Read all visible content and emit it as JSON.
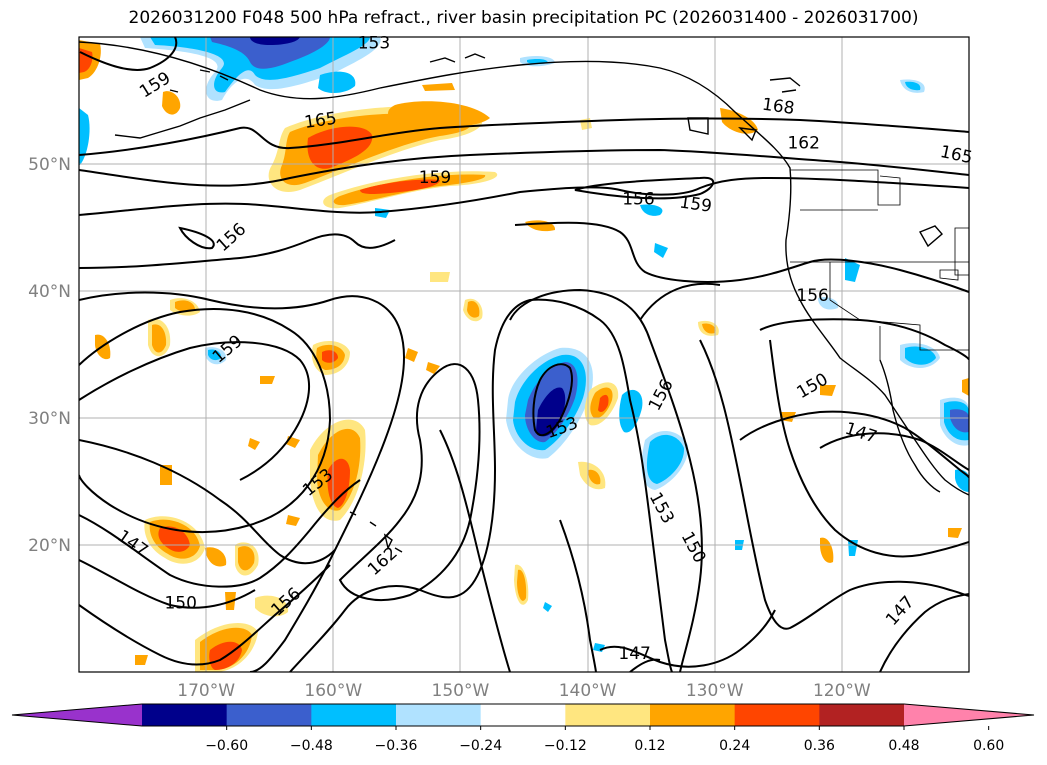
{
  "title": "2026031200 F048 500 hPa refract., river basin precipitation PC (2026031400 - 2026031700)",
  "map": {
    "lon_range": [
      -180,
      -110
    ],
    "lat_range": [
      10,
      60
    ],
    "lat_ticks": [
      {
        "value": 20,
        "label": "20°N"
      },
      {
        "value": 30,
        "label": "30°N"
      },
      {
        "value": 40,
        "label": "40°N"
      },
      {
        "value": 50,
        "label": "50°N"
      }
    ],
    "lon_ticks": [
      {
        "value": -170,
        "label": "170°W"
      },
      {
        "value": -160,
        "label": "160°W"
      },
      {
        "value": -150,
        "label": "150°W"
      },
      {
        "value": -140,
        "label": "140°W"
      },
      {
        "value": -130,
        "label": "130°W"
      },
      {
        "value": -120,
        "label": "120°W"
      }
    ],
    "contour_labels": [
      {
        "text": "159",
        "lon": -174,
        "lat": 56.2,
        "rot": -32
      },
      {
        "text": "165",
        "lon": -161,
        "lat": 53.4,
        "rot": -8
      },
      {
        "text": "159",
        "lon": -152,
        "lat": 48.9,
        "rot": 0
      },
      {
        "text": "156",
        "lon": -168,
        "lat": 44.2,
        "rot": -42
      },
      {
        "text": "168",
        "lon": -125,
        "lat": 54.5,
        "rot": 8
      },
      {
        "text": "162",
        "lon": -123,
        "lat": 51.6,
        "rot": 0
      },
      {
        "text": "165",
        "lon": -111,
        "lat": 50.7,
        "rot": 12
      },
      {
        "text": "156",
        "lon": -136,
        "lat": 47.2,
        "rot": 0
      },
      {
        "text": "159",
        "lon": -131.5,
        "lat": 46.8,
        "rot": 8
      },
      {
        "text": "156",
        "lon": -122.3,
        "lat": 39.6,
        "rot": 0
      },
      {
        "text": "159",
        "lon": -168.3,
        "lat": 35.4,
        "rot": -40
      },
      {
        "text": "150",
        "lon": -122.3,
        "lat": 32.5,
        "rot": -30
      },
      {
        "text": "153",
        "lon": -142,
        "lat": 29.2,
        "rot": -20
      },
      {
        "text": "156",
        "lon": -134.2,
        "lat": 31.8,
        "rot": -62
      },
      {
        "text": "147",
        "lon": -118.5,
        "lat": 28.8,
        "rot": 18
      },
      {
        "text": "153",
        "lon": -161.2,
        "lat": 24.9,
        "rot": -38
      },
      {
        "text": "153",
        "lon": -134.2,
        "lat": 22.9,
        "rot": 62
      },
      {
        "text": "150",
        "lon": -131.7,
        "lat": 19.8,
        "rot": 62
      },
      {
        "text": "162",
        "lon": -156.1,
        "lat": 18.7,
        "rot": -42
      },
      {
        "text": "147",
        "lon": -175.8,
        "lat": 20.1,
        "rot": 35
      },
      {
        "text": "150",
        "lon": -172,
        "lat": 15.4,
        "rot": 0
      },
      {
        "text": "156",
        "lon": -163.7,
        "lat": 15.5,
        "rot": -42
      },
      {
        "text": "147",
        "lon": -115.4,
        "lat": 14.8,
        "rot": -48
      },
      {
        "text": "147",
        "lon": -136.3,
        "lat": 11.4,
        "rot": 0
      },
      {
        "text": "153",
        "lon": -156.8,
        "lat": 59.5,
        "rot": 0
      }
    ]
  },
  "colorbar": {
    "colors": [
      "#9932cc",
      "#00008b",
      "#3b5fcd",
      "#00bfff",
      "#b0e2ff",
      "#ffffff",
      "#ffe680",
      "#ffa500",
      "#ff4500",
      "#b22222",
      "#ff82ab"
    ],
    "ticks": [
      "−0.60",
      "−0.48",
      "−0.36",
      "−0.24",
      "−0.12",
      "0.12",
      "0.24",
      "0.36",
      "0.48",
      "0.60"
    ]
  }
}
